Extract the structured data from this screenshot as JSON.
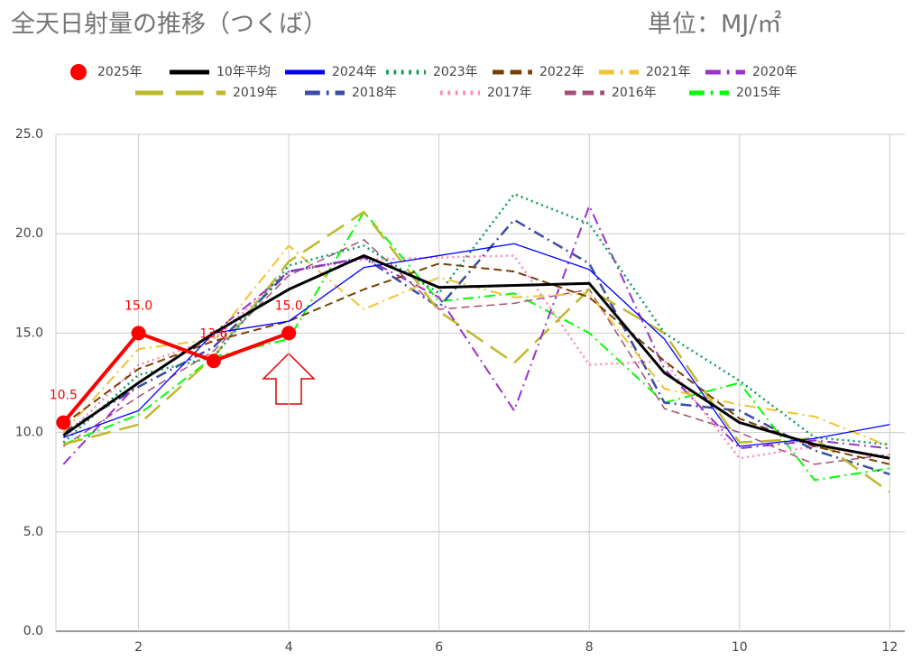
{
  "chart_data": {
    "type": "line",
    "title": "全天日射量の推移（つくば）",
    "subtitle": "単位：MJ/㎡",
    "x": [
      1,
      2,
      3,
      4,
      5,
      6,
      7,
      8,
      9,
      10,
      11,
      12
    ],
    "xlim": [
      0.9,
      12.2
    ],
    "xticks": [
      2,
      4,
      6,
      8,
      10,
      12
    ],
    "ylim": [
      0,
      25
    ],
    "yticks": [
      {
        "value": 0,
        "label": "0.0"
      },
      {
        "value": 5,
        "label": "5.0"
      },
      {
        "value": 10,
        "label": "10.0"
      },
      {
        "value": 15,
        "label": "15.0"
      },
      {
        "value": 20,
        "label": "20.0"
      },
      {
        "value": 25,
        "label": "25.0"
      }
    ],
    "grid": true,
    "legend": "top",
    "series": [
      {
        "name": "2025年",
        "color": "#ff0000",
        "dash": "solid",
        "width": 4,
        "markers": true,
        "values": [
          10.5,
          15.0,
          13.6,
          15.0,
          null,
          null,
          null,
          null,
          null,
          null,
          null,
          null
        ],
        "value_labels": [
          "10.5",
          "15.0",
          "13.6",
          "15.0",
          null,
          null,
          null,
          null,
          null,
          null,
          null,
          null
        ]
      },
      {
        "name": "10年平均",
        "color": "#000000",
        "dash": "solid",
        "width": 3,
        "values": [
          9.85,
          12.5,
          15.0,
          17.2,
          18.9,
          17.3,
          17.4,
          17.5,
          13.0,
          10.5,
          9.4,
          8.7
        ]
      },
      {
        "name": "2024年",
        "color": "#0000ff",
        "dash": "solid",
        "width": 1.3,
        "values": [
          9.75,
          11.1,
          15.0,
          15.6,
          18.3,
          18.9,
          19.5,
          18.2,
          14.7,
          9.3,
          9.7,
          10.4
        ]
      },
      {
        "name": "2023年",
        "color": "#0f9d58",
        "dash": "dot",
        "width": 2.5,
        "values": [
          9.5,
          12.9,
          13.8,
          18.4,
          19.4,
          17.0,
          22.0,
          20.5,
          15.0,
          12.6,
          9.75,
          9.4
        ]
      },
      {
        "name": "2022年",
        "color": "#783f04",
        "dash": "dash",
        "width": 2,
        "values": [
          10.4,
          13.2,
          14.6,
          15.6,
          17.2,
          18.5,
          18.1,
          16.8,
          13.6,
          10.7,
          9.3,
          8.4
        ]
      },
      {
        "name": "2021年",
        "color": "#f1c232",
        "dash": "dashdot",
        "width": 2,
        "values": [
          10.0,
          14.2,
          14.7,
          19.4,
          16.2,
          17.8,
          16.8,
          17.0,
          12.2,
          11.4,
          10.8,
          9.3
        ]
      },
      {
        "name": "2020年",
        "color": "#9932cc",
        "dash": "dashdot",
        "width": 2,
        "values": [
          8.4,
          12.5,
          15.0,
          18.1,
          18.8,
          16.8,
          11.1,
          21.4,
          13.2,
          9.2,
          9.6,
          9.2
        ]
      },
      {
        "name": "2019年",
        "color": "#bfb92b",
        "dash": "longdash",
        "width": 2.5,
        "values": [
          9.4,
          10.4,
          13.8,
          18.6,
          21.1,
          16.1,
          13.5,
          17.2,
          15.0,
          9.5,
          9.7,
          7.0
        ]
      },
      {
        "name": "2018年",
        "color": "#3c4ba6",
        "dash": "dashdot",
        "width": 2.5,
        "values": [
          10.0,
          12.3,
          14.3,
          18.1,
          18.8,
          16.3,
          20.7,
          18.5,
          11.5,
          11.1,
          9.1,
          7.9
        ]
      },
      {
        "name": "2017年",
        "color": "#ff88b4",
        "dash": "dot",
        "width": 2.5,
        "values": [
          9.75,
          13.4,
          14.7,
          18.1,
          18.7,
          18.8,
          18.9,
          13.4,
          13.6,
          8.7,
          9.3,
          8.8
        ]
      },
      {
        "name": "2016年",
        "color": "#a64d79",
        "dash": "dash",
        "width": 1.5,
        "values": [
          9.3,
          11.8,
          14.1,
          17.9,
          19.7,
          16.2,
          16.5,
          17.2,
          11.2,
          10.0,
          8.4,
          8.9
        ]
      },
      {
        "name": "2015年",
        "color": "#00ff00",
        "dash": "dashdot",
        "width": 2,
        "values": [
          9.4,
          10.9,
          13.8,
          14.7,
          21.1,
          16.6,
          17.0,
          15.0,
          11.5,
          12.5,
          7.6,
          8.2
        ]
      }
    ]
  }
}
